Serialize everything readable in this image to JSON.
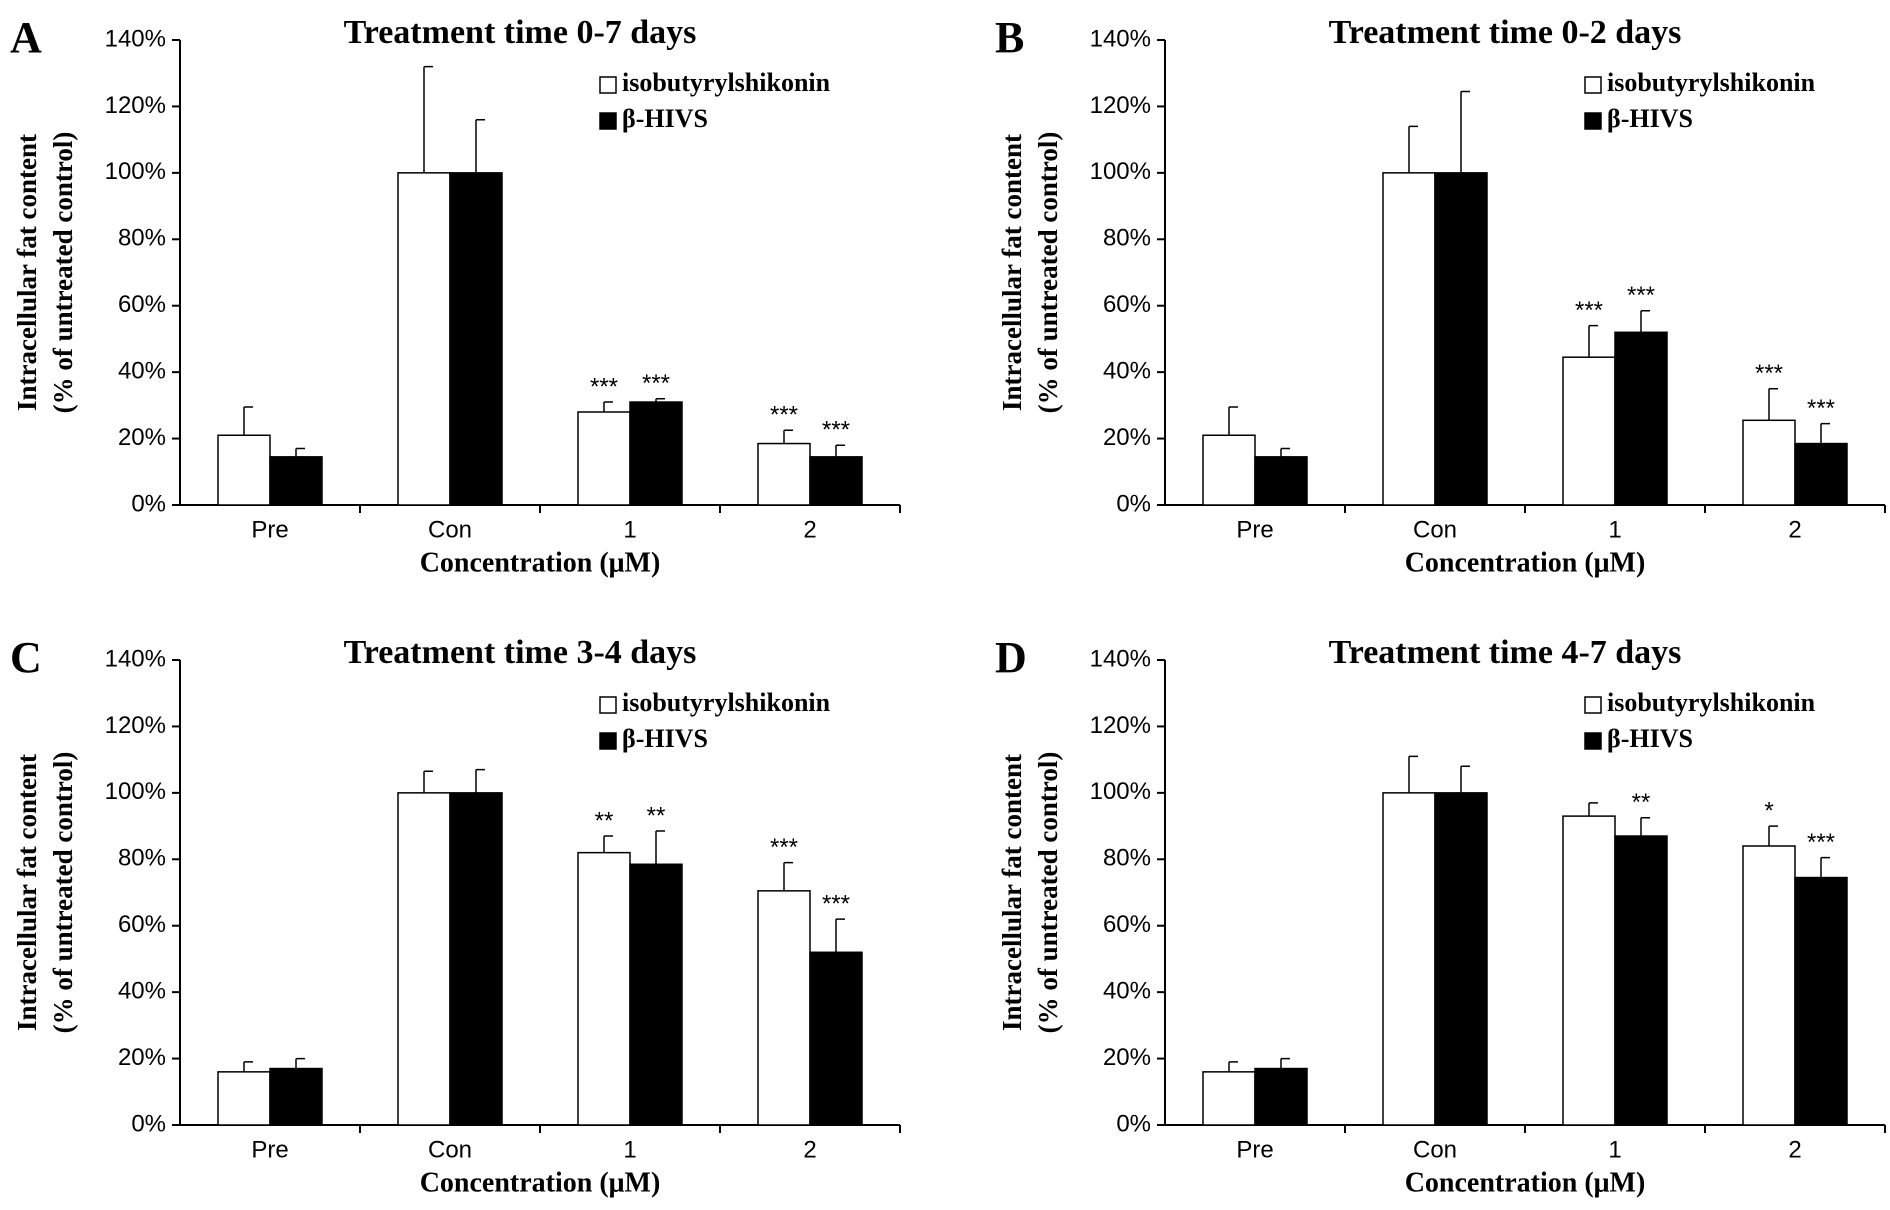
{
  "chart_data": [
    {
      "type": "bar",
      "panel": "A",
      "title": "Treatment time 0-7 days",
      "ylabel": [
        "Intracellular fat content",
        "(% of untreated control)"
      ],
      "xlabel": "Concentration (μM)",
      "categories": [
        "Pre",
        "Con",
        "1",
        "2"
      ],
      "series": [
        {
          "name": "isobutyrylshikonin",
          "color": "#ffffff",
          "values": [
            21,
            100,
            28,
            18.5
          ],
          "errors": [
            8.5,
            32,
            3,
            4
          ],
          "annotations": [
            null,
            null,
            "***",
            "***"
          ]
        },
        {
          "name": "β-HIVS",
          "color": "#000000",
          "values": [
            14.5,
            100,
            31,
            14.5
          ],
          "errors": [
            2.5,
            16,
            1,
            3.5
          ],
          "annotations": [
            null,
            null,
            "***",
            "***"
          ]
        }
      ],
      "ylim": [
        0,
        140
      ],
      "yticks": [
        {
          "value": 0,
          "label": "0%"
        },
        {
          "value": 20,
          "label": "20%"
        },
        {
          "value": 40,
          "label": "40%"
        },
        {
          "value": 60,
          "label": "60%"
        },
        {
          "value": 80,
          "label": "80%"
        },
        {
          "value": 100,
          "label": "100%"
        },
        {
          "value": 120,
          "label": "120%"
        },
        {
          "value": 140,
          "label": "140%"
        }
      ]
    },
    {
      "type": "bar",
      "panel": "B",
      "title": "Treatment time 0-2 days",
      "ylabel": [
        "Intracellular fat content",
        "(% of untreated control)"
      ],
      "xlabel": "Concentration (μM)",
      "categories": [
        "Pre",
        "Con",
        "1",
        "2"
      ],
      "series": [
        {
          "name": "isobutyrylshikonin",
          "color": "#ffffff",
          "values": [
            21,
            100,
            44.5,
            25.5
          ],
          "errors": [
            8.5,
            14,
            9.5,
            9.5
          ],
          "annotations": [
            null,
            null,
            "***",
            "***"
          ]
        },
        {
          "name": "β-HIVS",
          "color": "#000000",
          "values": [
            14.5,
            100,
            52,
            18.5
          ],
          "errors": [
            2.5,
            24.5,
            6.5,
            6
          ],
          "annotations": [
            null,
            null,
            "***",
            "***"
          ]
        }
      ],
      "ylim": [
        0,
        140
      ],
      "yticks": [
        {
          "value": 0,
          "label": "0%"
        },
        {
          "value": 20,
          "label": "20%"
        },
        {
          "value": 40,
          "label": "40%"
        },
        {
          "value": 60,
          "label": "60%"
        },
        {
          "value": 80,
          "label": "80%"
        },
        {
          "value": 100,
          "label": "100%"
        },
        {
          "value": 120,
          "label": "120%"
        },
        {
          "value": 140,
          "label": "140%"
        }
      ]
    },
    {
      "type": "bar",
      "panel": "C",
      "title": "Treatment time 3-4 days",
      "ylabel": [
        "Intracellular fat content",
        "(% of untreated control)"
      ],
      "xlabel": "Concentration (μM)",
      "categories": [
        "Pre",
        "Con",
        "1",
        "2"
      ],
      "series": [
        {
          "name": "isobutyrylshikonin",
          "color": "#ffffff",
          "values": [
            16,
            100,
            82,
            70.5
          ],
          "errors": [
            3,
            6.5,
            5,
            8.5
          ],
          "annotations": [
            null,
            null,
            "**",
            "***"
          ]
        },
        {
          "name": "β-HIVS",
          "color": "#000000",
          "values": [
            17,
            100,
            78.5,
            52
          ],
          "errors": [
            3,
            7,
            10,
            10
          ],
          "annotations": [
            null,
            null,
            "**",
            "***"
          ]
        }
      ],
      "ylim": [
        0,
        140
      ],
      "yticks": [
        {
          "value": 0,
          "label": "0%"
        },
        {
          "value": 20,
          "label": "20%"
        },
        {
          "value": 40,
          "label": "40%"
        },
        {
          "value": 60,
          "label": "60%"
        },
        {
          "value": 80,
          "label": "80%"
        },
        {
          "value": 100,
          "label": "100%"
        },
        {
          "value": 120,
          "label": "120%"
        },
        {
          "value": 140,
          "label": "140%"
        }
      ]
    },
    {
      "type": "bar",
      "panel": "D",
      "title": "Treatment time 4-7 days",
      "ylabel": [
        "Intracellular fat content",
        "(% of untreated control)"
      ],
      "xlabel": "Concentration (μM)",
      "categories": [
        "Pre",
        "Con",
        "1",
        "2"
      ],
      "series": [
        {
          "name": "isobutyrylshikonin",
          "color": "#ffffff",
          "values": [
            16,
            100,
            93,
            84
          ],
          "errors": [
            3,
            11,
            4,
            6
          ],
          "annotations": [
            null,
            null,
            null,
            "*"
          ]
        },
        {
          "name": "β-HIVS",
          "color": "#000000",
          "values": [
            17,
            100,
            87,
            74.5
          ],
          "errors": [
            3,
            8,
            5.5,
            6
          ],
          "annotations": [
            null,
            null,
            "**",
            "***"
          ]
        }
      ],
      "ylim": [
        0,
        140
      ],
      "yticks": [
        {
          "value": 0,
          "label": "0%"
        },
        {
          "value": 20,
          "label": "20%"
        },
        {
          "value": 40,
          "label": "40%"
        },
        {
          "value": 60,
          "label": "60%"
        },
        {
          "value": 80,
          "label": "80%"
        },
        {
          "value": 100,
          "label": "100%"
        },
        {
          "value": 120,
          "label": "120%"
        },
        {
          "value": 140,
          "label": "140%"
        }
      ]
    }
  ]
}
